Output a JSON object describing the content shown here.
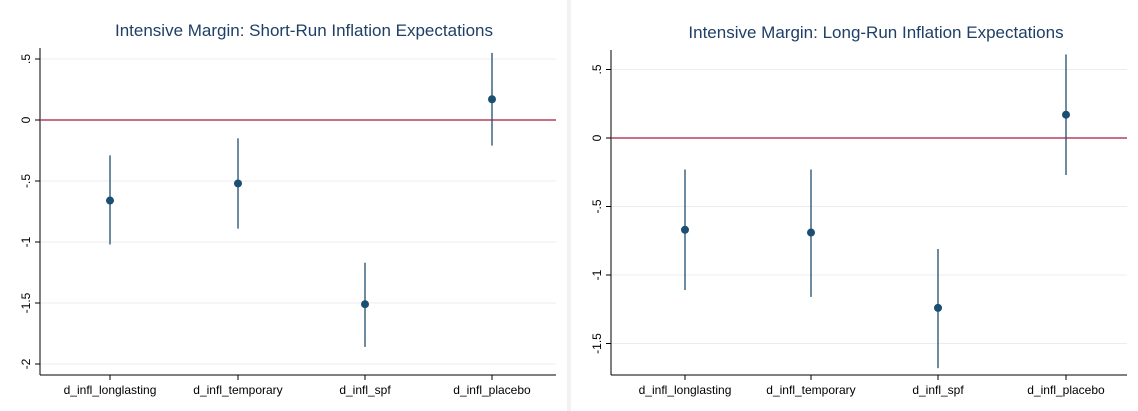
{
  "colors": {
    "point": "#1b4f72",
    "ci_line": "#1f4e6e",
    "zero_line": "#a6193c",
    "grid": "#ececec",
    "axis": "#000000",
    "title": "#1e3f66"
  },
  "chart_data": [
    {
      "type": "scatter",
      "title": "Intensive Margin: Short-Run Inflation Expectations",
      "categories": [
        "d_infl_longlasting",
        "d_infl_temporary",
        "d_infl_spf",
        "d_infl_placebo"
      ],
      "values": [
        -0.66,
        -0.52,
        -1.51,
        0.17
      ],
      "ci_low": [
        -1.02,
        -0.89,
        -1.86,
        -0.21
      ],
      "ci_high": [
        -0.29,
        -0.15,
        -1.17,
        0.55
      ],
      "yticks": [
        0.5,
        0,
        -0.5,
        -1,
        -1.5,
        -2
      ],
      "ytick_labels": [
        ".5",
        "0",
        "-.5",
        "-1",
        "-1.5",
        "-2"
      ],
      "ylim": [
        -2.05,
        0.55
      ],
      "reference_line": 0,
      "grid": true,
      "xlabel": "",
      "ylabel": ""
    },
    {
      "type": "scatter",
      "title": "Intensive Margin: Long-Run Inflation Expectations",
      "categories": [
        "d_infl_longlasting",
        "d_infl_temporary",
        "d_infl_spf",
        "d_infl_placebo"
      ],
      "values": [
        -0.67,
        -0.69,
        -1.24,
        0.17
      ],
      "ci_low": [
        -1.11,
        -1.16,
        -1.68,
        -0.27
      ],
      "ci_high": [
        -0.23,
        -0.23,
        -0.81,
        0.61
      ],
      "yticks": [
        0.5,
        0,
        -0.5,
        -1,
        -1.5
      ],
      "ytick_labels": [
        ".5",
        "0",
        "-.5",
        "-1",
        "-1.5"
      ],
      "ylim": [
        -1.68,
        0.61
      ],
      "reference_line": 0,
      "grid": true,
      "xlabel": "",
      "ylabel": ""
    }
  ]
}
